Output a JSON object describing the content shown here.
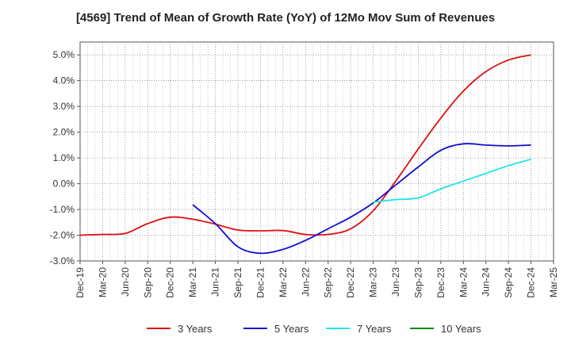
{
  "chart_data": {
    "type": "line",
    "title": "[4569]  Trend of Mean of Growth Rate (YoY) of 12Mo Mov Sum of Revenues",
    "xlabel": "",
    "ylabel": "",
    "ylim": [
      -3.0,
      5.5
    ],
    "y_ticks": [
      5.0,
      4.0,
      3.0,
      2.0,
      1.0,
      0.0,
      -1.0,
      -2.0,
      -3.0
    ],
    "y_tick_labels": [
      "5.0%",
      "4.0%",
      "3.0%",
      "2.0%",
      "1.0%",
      "0.0%",
      "-1.0%",
      "-2.0%",
      "-3.0%"
    ],
    "x_tick_labels": [
      "Dec-19",
      "Mar-20",
      "Jun-20",
      "Sep-20",
      "Dec-20",
      "Mar-21",
      "Jun-21",
      "Sep-21",
      "Dec-21",
      "Mar-22",
      "Jun-22",
      "Sep-22",
      "Dec-22",
      "Mar-23",
      "Jun-23",
      "Sep-23",
      "Dec-23",
      "Mar-24",
      "Jun-24",
      "Sep-24",
      "Dec-24",
      "Mar-25"
    ],
    "grid": true,
    "legend_position": "bottom",
    "series": [
      {
        "name": "3 Years",
        "color": "#dd1111",
        "values": [
          -2.0,
          -1.97,
          -1.93,
          -1.55,
          -1.3,
          -1.38,
          -1.57,
          -1.8,
          -1.83,
          -1.82,
          -1.97,
          -1.97,
          -1.75,
          -1.05,
          0.1,
          1.35,
          2.55,
          3.6,
          4.35,
          4.8,
          5.0,
          null
        ]
      },
      {
        "name": "5 Years",
        "color": "#1111cc",
        "values": [
          null,
          null,
          null,
          null,
          null,
          -0.82,
          -1.55,
          -2.45,
          -2.7,
          -2.55,
          -2.2,
          -1.75,
          -1.3,
          -0.75,
          -0.05,
          0.65,
          1.3,
          1.55,
          1.5,
          1.47,
          1.5,
          null
        ]
      },
      {
        "name": "7 Years",
        "color": "#22e5e5",
        "values": [
          null,
          null,
          null,
          null,
          null,
          null,
          null,
          null,
          null,
          null,
          null,
          null,
          null,
          -0.72,
          -0.62,
          -0.55,
          -0.2,
          0.1,
          0.4,
          0.7,
          0.95,
          null
        ]
      },
      {
        "name": "10 Years",
        "color": "#118811",
        "values": [
          null,
          null,
          null,
          null,
          null,
          null,
          null,
          null,
          null,
          null,
          null,
          null,
          null,
          null,
          null,
          null,
          null,
          null,
          null,
          null,
          null,
          null
        ]
      }
    ]
  }
}
